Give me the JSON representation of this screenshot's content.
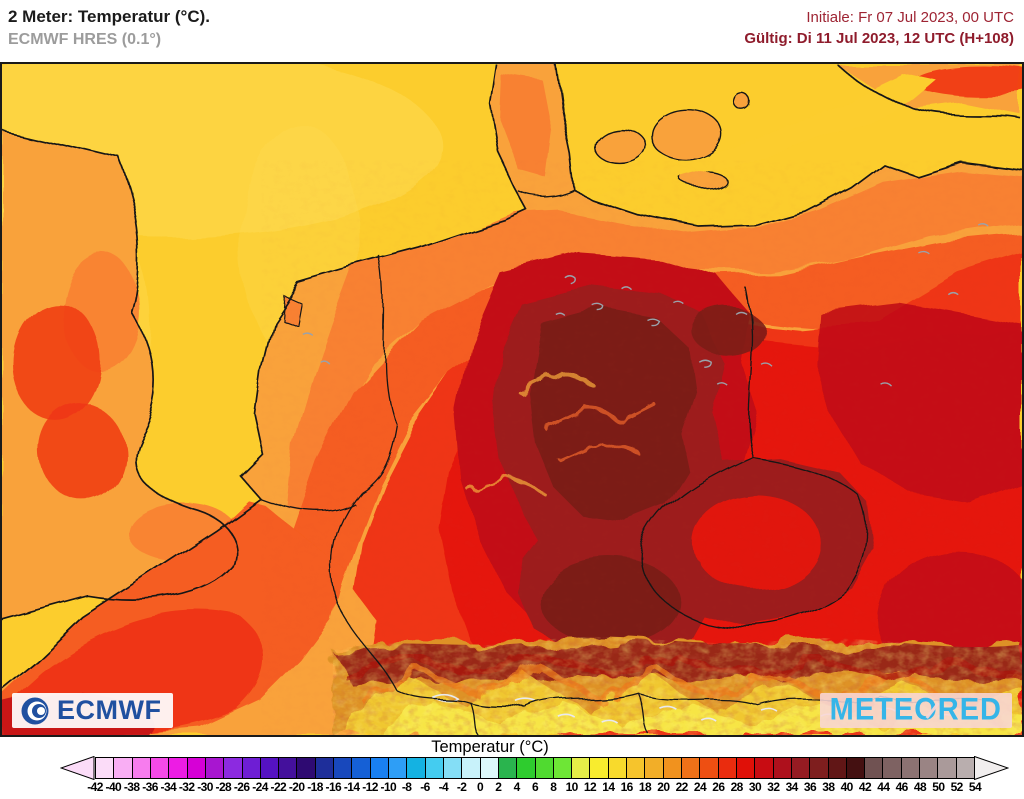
{
  "header": {
    "title": "2 Meter: Temperatur (°C).",
    "subtitle": "ECMWF HRES (0.1°)",
    "run_info": "Initiale: Fr 07 Jul 2023, 00 UTC",
    "valid_info": "Gültig: Di 11 Jul 2023, 12 UTC (H+108)"
  },
  "map": {
    "logo_ecmwf": "ECMWF",
    "logo_meteored": "METEORED"
  },
  "colors": {
    "date_red": "#9e2433",
    "ecmwf_blue": "#2050a0",
    "meteored_cyan": "#35b5e8",
    "sea_yellow": "#fccd2d"
  },
  "legend": {
    "title": "Temperatur (°C)",
    "unit": "°C",
    "min": -42,
    "max": 54,
    "step": 2,
    "ticks": [
      -42,
      -40,
      -38,
      -36,
      -34,
      -32,
      -30,
      -28,
      -26,
      -24,
      -22,
      -20,
      -18,
      -16,
      -14,
      -12,
      -10,
      -8,
      -6,
      -4,
      -2,
      0,
      2,
      4,
      6,
      8,
      10,
      12,
      14,
      16,
      18,
      20,
      22,
      24,
      26,
      28,
      30,
      32,
      34,
      36,
      38,
      40,
      42,
      44,
      46,
      48,
      50,
      52,
      54
    ],
    "colors": [
      "#fbdcf8",
      "#f9aef4",
      "#f77cee",
      "#f54ae8",
      "#ed1ce4",
      "#d600d6",
      "#a816d0",
      "#8c2ae0",
      "#6e1ed4",
      "#5512c2",
      "#44109c",
      "#2e0a72",
      "#1e2e9a",
      "#1848bc",
      "#1560d6",
      "#1980f2",
      "#2e9ef6",
      "#14b2e2",
      "#44ccf0",
      "#84def6",
      "#c8f2fa",
      "#ddf9fb",
      "#2ab44e",
      "#2ecc2e",
      "#50da30",
      "#6ee636",
      "#e5ee48",
      "#f8ec2e",
      "#f8da2c",
      "#f6c42c",
      "#f2ae28",
      "#f1921e",
      "#ef7118",
      "#ee4f12",
      "#ea2c0e",
      "#e01008",
      "#c80c12",
      "#ae101c",
      "#951b22",
      "#7e1e1e",
      "#611616",
      "#441011",
      "#705252",
      "#7e6262",
      "#8c7272",
      "#9a8484",
      "#aa9a9a",
      "#b9aeae"
    ],
    "arrow_left_color": "#fbdcf8",
    "arrow_right_color": "#f1eeee"
  }
}
